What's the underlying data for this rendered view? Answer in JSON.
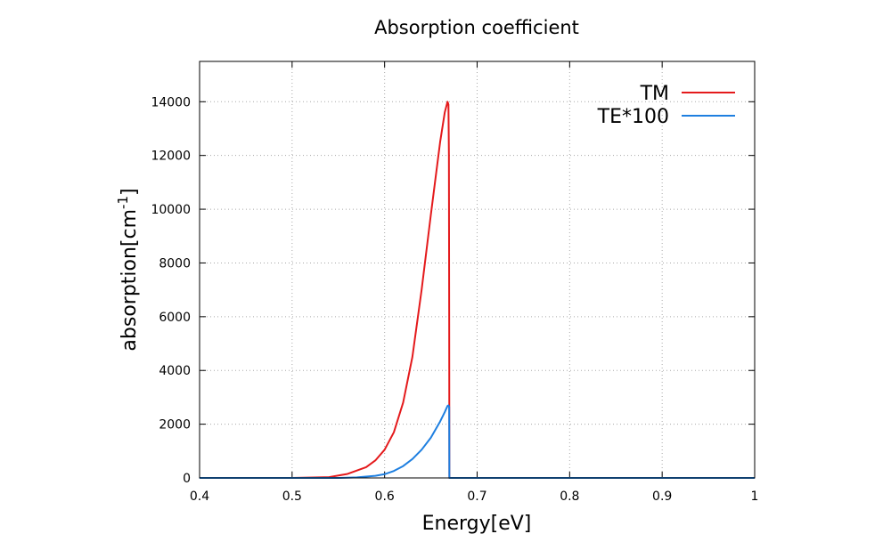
{
  "chart_data": {
    "type": "line",
    "title": "Absorption coefficient",
    "xlabel": "Energy[eV]",
    "ylabel_parts": [
      "absorption[cm",
      "-1",
      "]"
    ],
    "xlim": [
      0.4,
      1.0
    ],
    "ylim": [
      0,
      15500
    ],
    "grid": true,
    "legend_position": "top-right",
    "x_ticks": [
      0.4,
      0.5,
      0.6,
      0.7,
      0.8,
      0.9,
      1.0
    ],
    "x_tick_labels": [
      "0.4",
      "0.5",
      "0.6",
      "0.7",
      "0.8",
      "0.9",
      "1"
    ],
    "y_ticks": [
      0,
      2000,
      4000,
      6000,
      8000,
      10000,
      12000,
      14000
    ],
    "y_tick_labels": [
      "0",
      "2000",
      "4000",
      "6000",
      "8000",
      "10000",
      "12000",
      "14000"
    ],
    "series": [
      {
        "name": "TM",
        "color": "#e41a1c",
        "x": [
          0.4,
          0.5,
          0.54,
          0.56,
          0.58,
          0.59,
          0.6,
          0.61,
          0.62,
          0.63,
          0.64,
          0.65,
          0.66,
          0.665,
          0.668,
          0.669,
          0.6695,
          0.6698,
          0.67,
          0.7,
          0.8,
          0.9,
          1.0
        ],
        "y": [
          0,
          0,
          30,
          150,
          400,
          650,
          1050,
          1700,
          2800,
          4500,
          7000,
          9800,
          12500,
          13600,
          14000,
          13900,
          12000,
          6000,
          0,
          0,
          0,
          0,
          0
        ]
      },
      {
        "name": "TE*100",
        "color": "#1e7fe0",
        "x": [
          0.4,
          0.55,
          0.57,
          0.59,
          0.6,
          0.61,
          0.62,
          0.63,
          0.64,
          0.65,
          0.66,
          0.665,
          0.668,
          0.669,
          0.6698,
          0.67,
          0.7,
          0.8,
          0.9,
          1.0
        ],
        "y": [
          0,
          0,
          20,
          80,
          140,
          260,
          440,
          700,
          1050,
          1500,
          2100,
          2450,
          2680,
          2700,
          2650,
          0,
          0,
          0,
          0,
          0
        ]
      }
    ]
  }
}
